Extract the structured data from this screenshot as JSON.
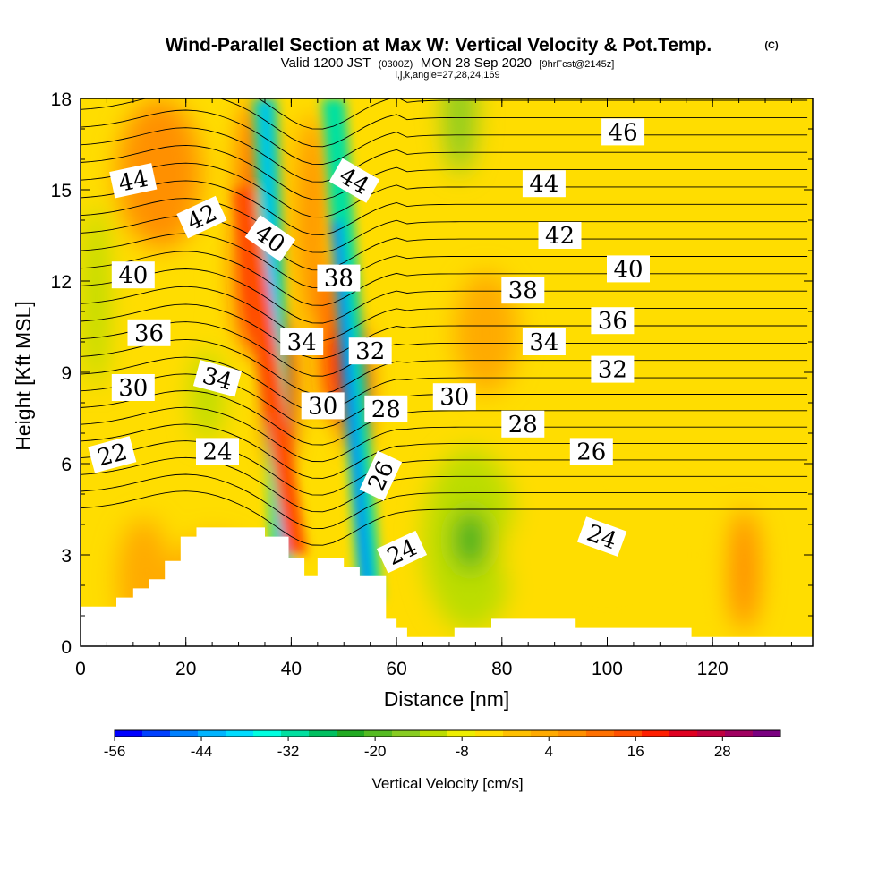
{
  "header": {
    "title": "Wind-Parallel Section at Max W: Vertical Velocity & Pot.Temp.",
    "copyright": "(C)",
    "valid_prefix": "Valid 1200 JST",
    "valid_zulu": "(0300Z)",
    "valid_suffix": "MON 28 Sep 2020",
    "forecast": "[9hrFcst@2145z]",
    "indices": "i,j,k,angle=27,28,24,169"
  },
  "chart_data": {
    "type": "heatmap",
    "xlabel": "Distance [nm]",
    "ylabel": "Height [Kft MSL]",
    "xlim": [
      0,
      139
    ],
    "ylim": [
      0,
      18
    ],
    "x_ticks": [
      0,
      20,
      40,
      60,
      80,
      100,
      120
    ],
    "y_ticks": [
      0,
      3,
      6,
      9,
      12,
      15,
      18
    ],
    "colorbar": {
      "title": "Vertical Velocity [cm/s]",
      "tick_labels": [
        "-56",
        "-44",
        "-32",
        "-20",
        "-8",
        "4",
        "16",
        "28"
      ],
      "tick_values": [
        -56,
        -44,
        -32,
        -20,
        -8,
        4,
        16,
        28
      ],
      "range": [
        -56,
        36
      ],
      "bin_width": 4,
      "colors": [
        "#0000ff",
        "#0040ff",
        "#0080ff",
        "#00b4ff",
        "#00dcff",
        "#00ffe0",
        "#00e0a0",
        "#00c060",
        "#22aa22",
        "#55bb22",
        "#88cc22",
        "#bbdd00",
        "#eeee00",
        "#ffdd00",
        "#ffc000",
        "#ffaa00",
        "#ff9000",
        "#ff7000",
        "#ff5000",
        "#ff1e00",
        "#e00020",
        "#c00040",
        "#a00060",
        "#7a0080"
      ]
    },
    "background_w": -2,
    "updrafts_downdrafts": [
      {
        "x": 3,
        "y": 11.5,
        "rx": 2.5,
        "ry": 3,
        "w": -12
      },
      {
        "x": 12,
        "y": 11.5,
        "rx": 4,
        "ry": 2.5,
        "w": -4
      },
      {
        "x": 15,
        "y": 15.5,
        "rx": 8,
        "ry": 2.5,
        "w": 8
      },
      {
        "x": 33,
        "y": 15.5,
        "rx": 3,
        "ry": 2.5,
        "w": 12
      },
      {
        "x": 44,
        "y": 14,
        "rx": 3,
        "ry": 3.5,
        "w": 8
      },
      {
        "x": 24,
        "y": 8.2,
        "rx": 3,
        "ry": 1.5,
        "w": -10
      },
      {
        "x": 25,
        "y": 1.8,
        "rx": 9,
        "ry": 1.8,
        "w": 6
      },
      {
        "x": 12,
        "y": 2.2,
        "rx": 5,
        "ry": 2,
        "w": 4
      },
      {
        "x": 33,
        "y": 12.5,
        "rx": 3,
        "ry": 3,
        "w": 20
      },
      {
        "x": 38,
        "y": 8.5,
        "rx": 2,
        "ry": 2.5,
        "w": 24
      },
      {
        "x": 48,
        "y": 10,
        "rx": 2,
        "ry": 2.5,
        "w": 20
      },
      {
        "x": 52,
        "y": 8.5,
        "rx": 2,
        "ry": 2,
        "w": 24
      },
      {
        "x": 74,
        "y": 3.5,
        "rx": 9,
        "ry": 3,
        "w": -10
      },
      {
        "x": 74,
        "y": 3.5,
        "rx": 3,
        "ry": 1,
        "w": -22
      },
      {
        "x": 72,
        "y": 17.5,
        "rx": 3,
        "ry": 2,
        "w": -14
      },
      {
        "x": 77,
        "y": 10.3,
        "rx": 6,
        "ry": 2,
        "w": 4
      },
      {
        "x": 126,
        "y": 2.5,
        "rx": 3,
        "ry": 2,
        "w": 8
      },
      {
        "x": 100,
        "y": 3,
        "rx": 20,
        "ry": 2.5,
        "w": -4
      }
    ],
    "bands": [
      {
        "name": "downdraft-west",
        "x_top": 35.0,
        "x_bot": 38.5,
        "y_top": 18,
        "y_bot": 2.5,
        "half_width": 2.2,
        "w": -32
      },
      {
        "name": "downdraft-west-core",
        "x_top": 35.0,
        "x_bot": 38.5,
        "y_top": 18,
        "y_bot": 3,
        "half_width": 0.8,
        "w": -44
      },
      {
        "name": "downdraft-east",
        "x_top": 48.0,
        "x_bot": 55.0,
        "y_top": 18,
        "y_bot": 1.5,
        "half_width": 2.2,
        "w": -30
      },
      {
        "name": "downdraft-east-core",
        "x_top": 48.5,
        "x_bot": 54.5,
        "y_top": 14,
        "y_bot": 1.8,
        "half_width": 0.9,
        "w": -48
      },
      {
        "name": "updraft-main",
        "x_top": 31.0,
        "x_bot": 41.0,
        "y_top": 15,
        "y_bot": 3,
        "half_width": 2.0,
        "w": 18
      }
    ],
    "theta_contours": {
      "interval": 1,
      "levels_low": [
        22,
        30
      ],
      "levels_high": [
        30,
        46
      ],
      "labels": [
        {
          "text": "44",
          "x": 10,
          "y": 15.3,
          "angle": -12
        },
        {
          "text": "42",
          "x": 23,
          "y": 14.1,
          "angle": -25
        },
        {
          "text": "40",
          "x": 36,
          "y": 13.4,
          "angle": 35
        },
        {
          "text": "44",
          "x": 52,
          "y": 15.3,
          "angle": 30
        },
        {
          "text": "44",
          "x": 88,
          "y": 15.2,
          "angle": 0
        },
        {
          "text": "46",
          "x": 103,
          "y": 16.9,
          "angle": 0
        },
        {
          "text": "42",
          "x": 91,
          "y": 13.5,
          "angle": 0
        },
        {
          "text": "40",
          "x": 104,
          "y": 12.4,
          "angle": 0
        },
        {
          "text": "40",
          "x": 10,
          "y": 12.2,
          "angle": 0
        },
        {
          "text": "38",
          "x": 49,
          "y": 12.1,
          "angle": 0
        },
        {
          "text": "38",
          "x": 84,
          "y": 11.7,
          "angle": 0
        },
        {
          "text": "36",
          "x": 101,
          "y": 10.7,
          "angle": 0
        },
        {
          "text": "36",
          "x": 13,
          "y": 10.3,
          "angle": 0
        },
        {
          "text": "34",
          "x": 42,
          "y": 10.0,
          "angle": 0
        },
        {
          "text": "34",
          "x": 88,
          "y": 10.0,
          "angle": 0
        },
        {
          "text": "32",
          "x": 55,
          "y": 9.7,
          "angle": 0
        },
        {
          "text": "32",
          "x": 101,
          "y": 9.1,
          "angle": 0
        },
        {
          "text": "34",
          "x": 26,
          "y": 8.8,
          "angle": 15
        },
        {
          "text": "30",
          "x": 10,
          "y": 8.5,
          "angle": 0
        },
        {
          "text": "30",
          "x": 46,
          "y": 7.9,
          "angle": 0
        },
        {
          "text": "28",
          "x": 58,
          "y": 7.8,
          "angle": 0
        },
        {
          "text": "30",
          "x": 71,
          "y": 8.2,
          "angle": 0
        },
        {
          "text": "28",
          "x": 84,
          "y": 7.3,
          "angle": 0
        },
        {
          "text": "26",
          "x": 97,
          "y": 6.4,
          "angle": 0
        },
        {
          "text": "22",
          "x": 6,
          "y": 6.3,
          "angle": -15
        },
        {
          "text": "24",
          "x": 26,
          "y": 6.4,
          "angle": 0
        },
        {
          "text": "26",
          "x": 57,
          "y": 5.6,
          "angle": -65
        },
        {
          "text": "24",
          "x": 61,
          "y": 3.1,
          "angle": -25
        },
        {
          "text": "24",
          "x": 99,
          "y": 3.6,
          "angle": 20
        }
      ]
    },
    "terrain": [
      [
        0,
        1.3
      ],
      [
        6.8,
        1.3
      ],
      [
        6.8,
        1.6
      ],
      [
        10,
        1.6
      ],
      [
        10,
        1.9
      ],
      [
        13,
        1.9
      ],
      [
        13,
        2.2
      ],
      [
        16,
        2.2
      ],
      [
        16,
        2.8
      ],
      [
        19,
        2.8
      ],
      [
        19,
        3.6
      ],
      [
        22,
        3.6
      ],
      [
        22,
        3.9
      ],
      [
        25,
        3.9
      ],
      [
        25,
        3.9
      ],
      [
        31,
        3.9
      ],
      [
        35,
        3.9
      ],
      [
        35,
        3.6
      ],
      [
        38,
        3.6
      ],
      [
        38,
        3.6
      ],
      [
        39.5,
        3.6
      ],
      [
        39.5,
        2.9
      ],
      [
        42.5,
        2.9
      ],
      [
        42.5,
        2.3
      ],
      [
        45,
        2.3
      ],
      [
        45,
        2.9
      ],
      [
        50,
        2.9
      ],
      [
        50,
        2.6
      ],
      [
        53,
        2.6
      ],
      [
        53,
        2.3
      ],
      [
        58,
        2.3
      ],
      [
        58,
        0.9
      ],
      [
        60,
        0.9
      ],
      [
        60,
        0.6
      ],
      [
        62,
        0.6
      ],
      [
        62,
        0.3
      ],
      [
        71,
        0.3
      ],
      [
        71,
        0.6
      ],
      [
        78,
        0.6
      ],
      [
        78,
        0.9
      ],
      [
        94,
        0.9
      ],
      [
        94,
        0.6
      ],
      [
        116,
        0.6
      ],
      [
        116,
        0.3
      ],
      [
        139,
        0.3
      ],
      [
        139,
        0
      ],
      [
        0,
        0
      ]
    ]
  }
}
